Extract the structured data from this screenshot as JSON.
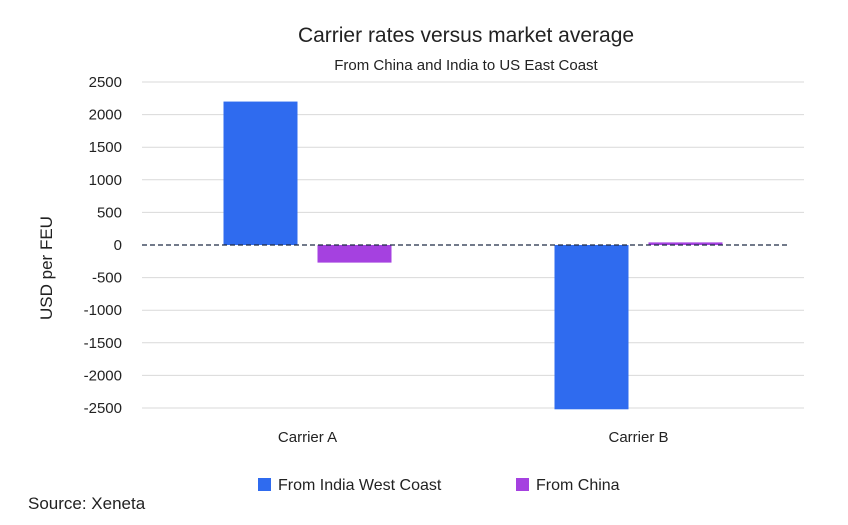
{
  "chart_data": {
    "type": "bar",
    "title": "Carrier rates versus market average",
    "subtitle": "From China and India to US East Coast",
    "ylabel": "USD per FEU",
    "xlabel": "",
    "categories": [
      "Carrier A",
      "Carrier B"
    ],
    "series": [
      {
        "name": "From India West Coast",
        "color": "#2F6BEF",
        "values": [
          2200,
          -2520
        ]
      },
      {
        "name": "From China",
        "color": "#A541E0",
        "values": [
          -270,
          40
        ]
      }
    ],
    "ylim": [
      -2500,
      2500
    ],
    "yticks": [
      2500,
      2000,
      1500,
      1000,
      500,
      0,
      -500,
      -1000,
      -1500,
      -2000,
      -2500
    ],
    "ytick_labels": [
      "2500",
      "2000",
      "1500",
      "1000",
      "500",
      "0",
      "-500",
      "-1000",
      "-1500",
      "-2000",
      "-2500"
    ],
    "grid": true,
    "zero_line": "dashed",
    "legend_position": "bottom",
    "source": "Source: Xeneta"
  }
}
